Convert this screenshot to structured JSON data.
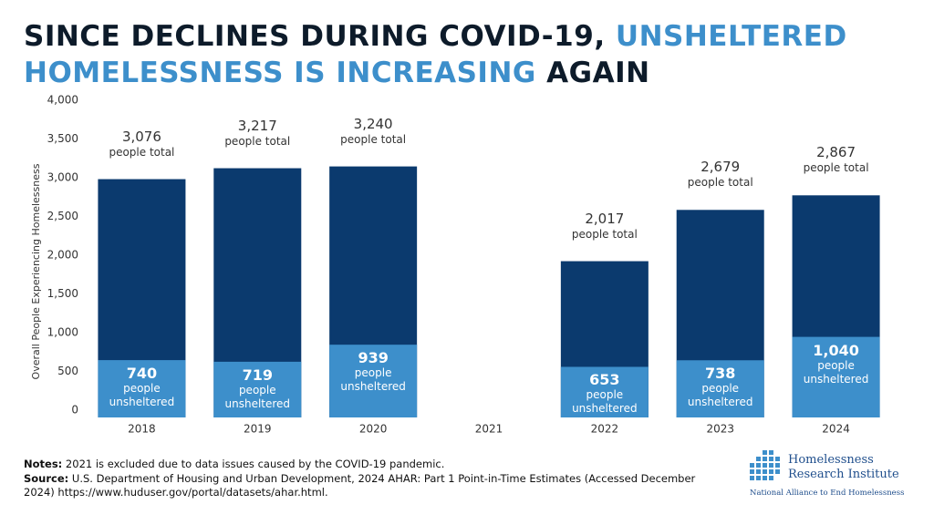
{
  "chart_data": {
    "type": "bar",
    "title": [
      {
        "text": "SINCE DECLINES DURING COVID-19, ",
        "color": "#0d1b2a"
      },
      {
        "text": "UNSHELTERED HOMELESSNESS IS INCREASING",
        "color": "#3d8fcb"
      },
      {
        "text": " AGAIN",
        "color": "#0d1b2a"
      }
    ],
    "ylabel": "Overall People Experiencing Homelessness",
    "categories": [
      "2018",
      "2019",
      "2020",
      "2021",
      "2022",
      "2023",
      "2024"
    ],
    "series": [
      {
        "name": "people total",
        "color": "#0b3a6e",
        "values": [
          3076,
          3217,
          3240,
          null,
          2017,
          2679,
          2867
        ],
        "value_labels": [
          "3,076",
          "3,217",
          "3,240",
          null,
          "2,017",
          "2,679",
          "2,867"
        ]
      },
      {
        "name": "people unsheltered",
        "color": "#3d8fcb",
        "values": [
          740,
          719,
          939,
          null,
          653,
          738,
          1040
        ],
        "value_labels": [
          "740",
          "719",
          "939",
          null,
          "653",
          "738",
          "1,040"
        ]
      }
    ],
    "ylim": [
      0,
      4000
    ],
    "yticks": [
      0,
      500,
      {
        "value": 1000,
        "label": "1,000"
      },
      {
        "value": 1500,
        "label": "1,500"
      },
      {
        "value": 2000,
        "label": "2,000"
      },
      {
        "value": 2500,
        "label": "2,500"
      },
      {
        "value": 3000,
        "label": "3,000"
      },
      {
        "value": 3500,
        "label": "3,500"
      },
      {
        "value": 4000,
        "label": "4,000"
      }
    ],
    "grid": false,
    "notes": {
      "label": "Notes:",
      "text": " 2021 is excluded due to data issues caused by the COVID-19 pandemic."
    },
    "source": {
      "label": "Source:",
      "text": " U.S. Department of Housing and Urban Development, 2024 AHAR: Part 1 Point-in-Time Estimates (Accessed December 2024) https://www.huduser.gov/portal/datasets/ahar.html."
    },
    "logo": {
      "name_line1": "Homelessness",
      "name_line2": "Research Institute",
      "tagline": "National Alliance to End Homelessness"
    }
  }
}
